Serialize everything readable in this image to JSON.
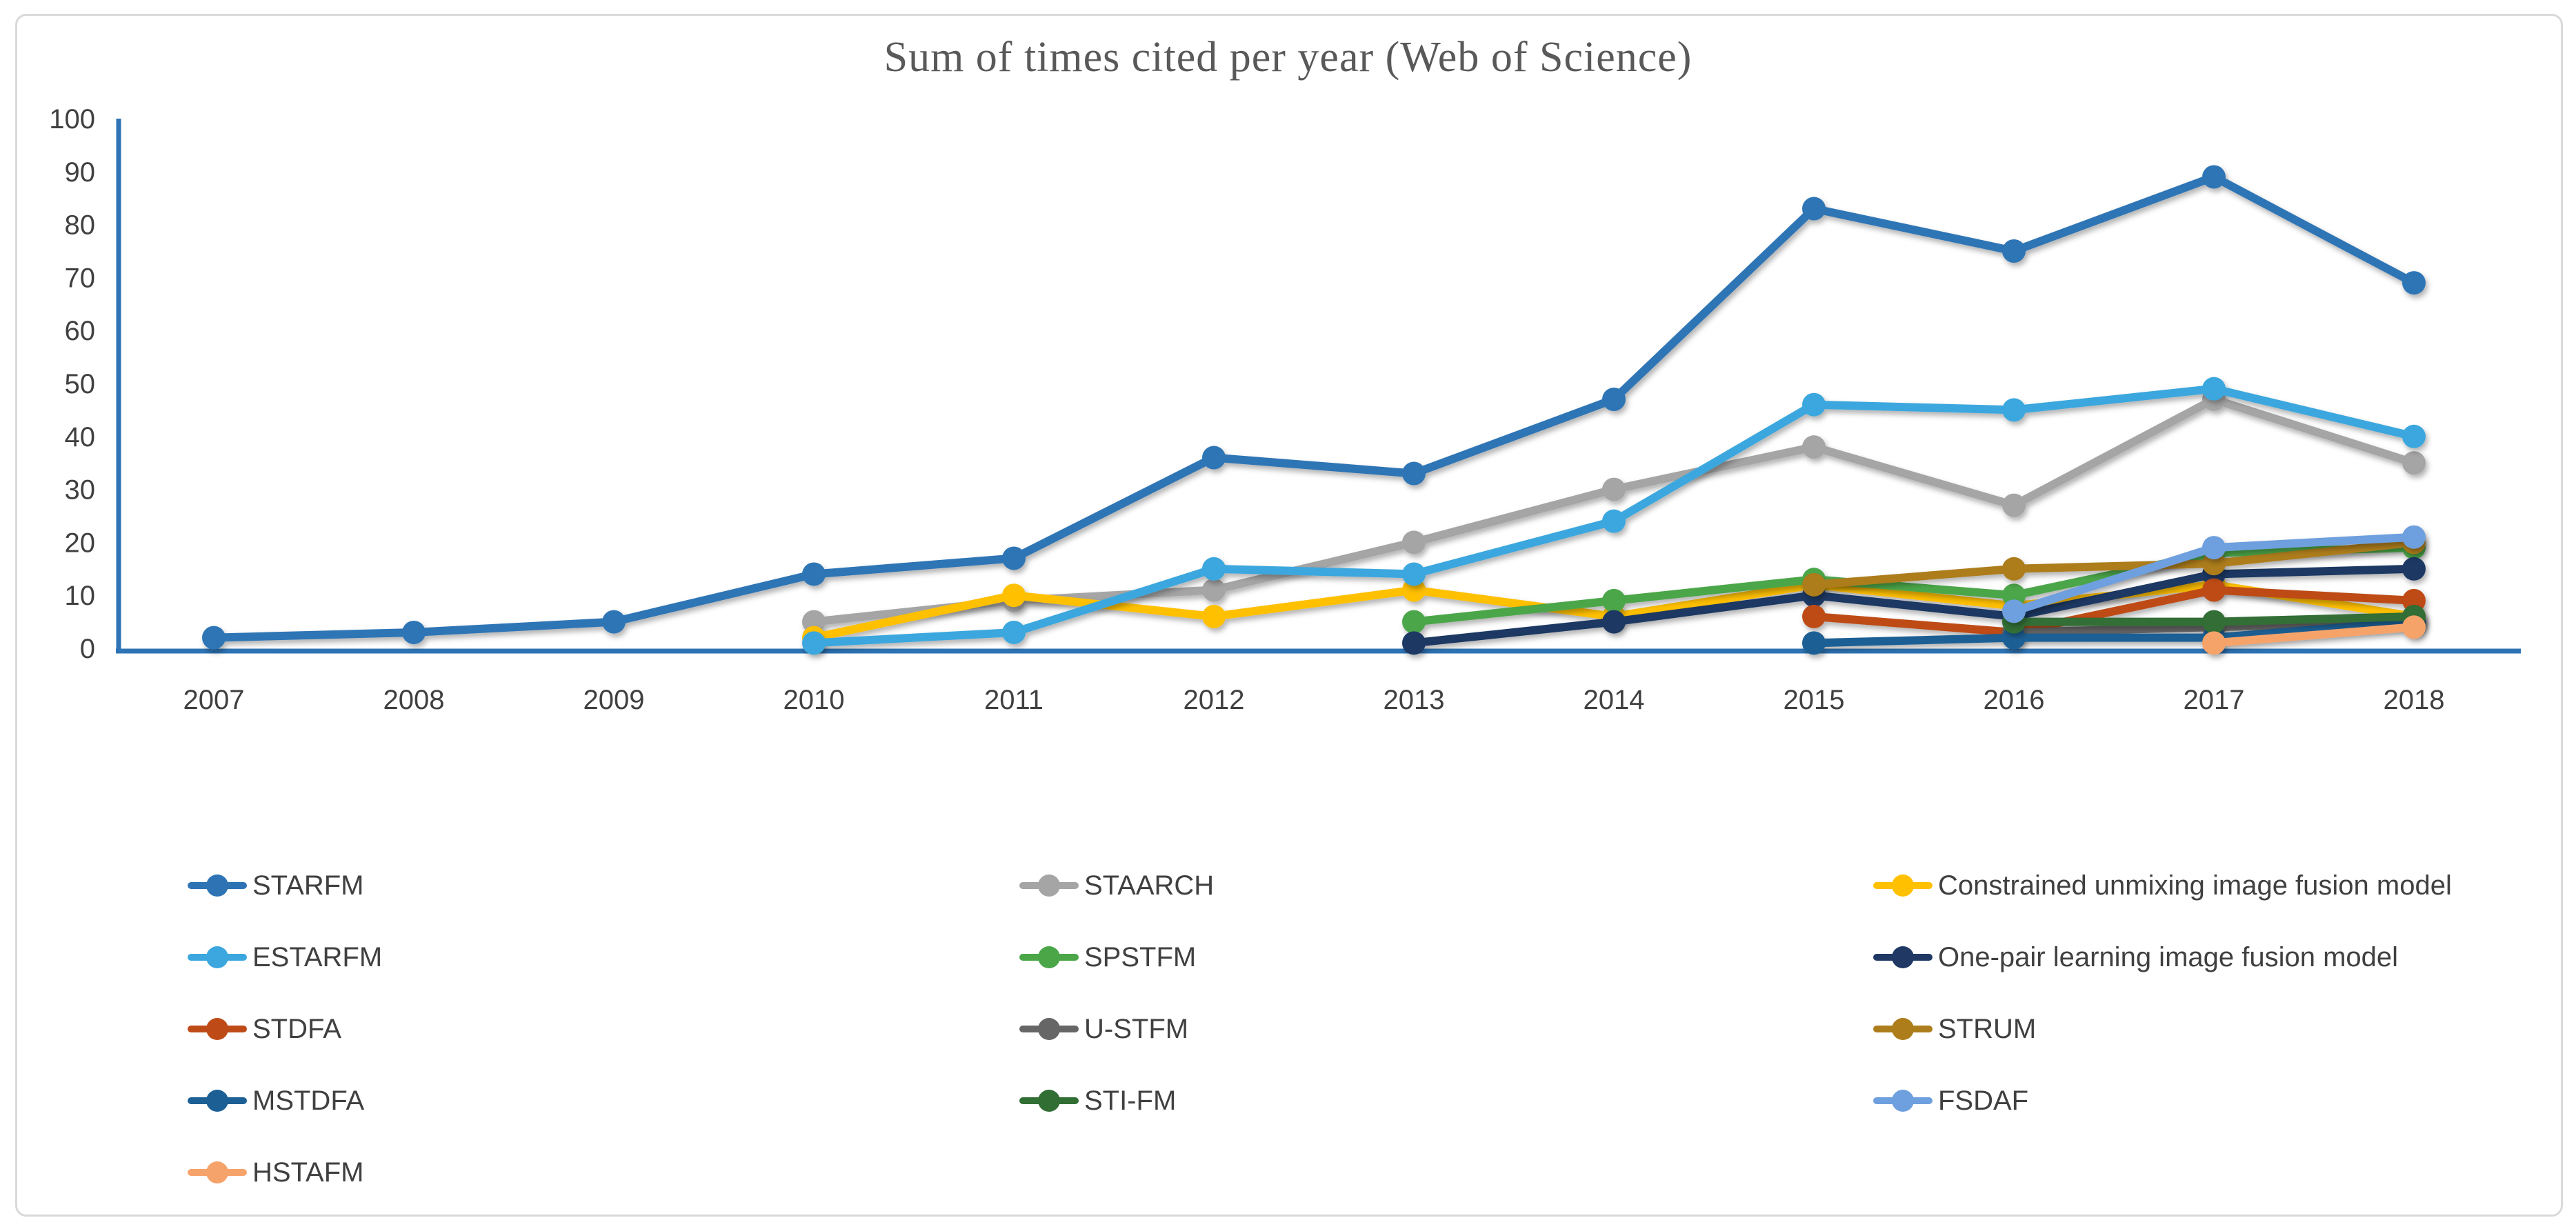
{
  "figure": {
    "background": "#FFFFFF",
    "border_color": "#D9D9D9"
  },
  "chart_data": {
    "type": "line",
    "title": "Sum of times cited per year (Web of Science)",
    "xlabel": "",
    "ylabel": "",
    "x": [
      2007,
      2008,
      2009,
      2010,
      2011,
      2012,
      2013,
      2014,
      2015,
      2016,
      2017,
      2018
    ],
    "y_ticks": [
      0,
      10,
      20,
      30,
      40,
      50,
      60,
      70,
      80,
      90,
      100
    ],
    "ylim": [
      0,
      100
    ],
    "grid": false,
    "legend_position": "bottom",
    "axis_color": "#2E74B5",
    "series": [
      {
        "name": "STARFM",
        "color": "#2E74B5",
        "values": [
          2,
          3,
          5,
          14,
          17,
          36,
          33,
          47,
          83,
          75,
          89,
          69
        ]
      },
      {
        "name": "STAARCH",
        "color": "#A5A5A5",
        "values": [
          null,
          null,
          null,
          5,
          9,
          11,
          20,
          30,
          38,
          27,
          47,
          35
        ]
      },
      {
        "name": "Constrained unmixing image fusion model",
        "color": "#FFC000",
        "values": [
          null,
          null,
          null,
          2,
          10,
          6,
          11,
          6,
          12,
          8,
          12,
          6
        ]
      },
      {
        "name": "ESTARFM",
        "color": "#3BA7DE",
        "values": [
          null,
          null,
          null,
          1,
          3,
          15,
          14,
          24,
          46,
          45,
          49,
          40
        ]
      },
      {
        "name": "SPSTFM",
        "color": "#4BA648",
        "values": [
          null,
          null,
          null,
          null,
          null,
          null,
          5,
          9,
          13,
          10,
          18,
          19
        ]
      },
      {
        "name": "One-pair learning image fusion model",
        "color": "#1F3864",
        "values": [
          null,
          null,
          null,
          null,
          null,
          null,
          1,
          5,
          10,
          6,
          14,
          15
        ]
      },
      {
        "name": "STDFA",
        "color": "#BE4B17",
        "values": [
          null,
          null,
          null,
          null,
          null,
          null,
          null,
          null,
          6,
          3,
          11,
          9
        ]
      },
      {
        "name": "U-STFM",
        "color": "#666666",
        "values": [
          null,
          null,
          null,
          null,
          null,
          null,
          null,
          null,
          null,
          3,
          4,
          5
        ]
      },
      {
        "name": "STRUM",
        "color": "#AD7D1C",
        "values": [
          null,
          null,
          null,
          null,
          null,
          null,
          null,
          null,
          12,
          15,
          16,
          20
        ]
      },
      {
        "name": "MSTDFA",
        "color": "#1C5F94",
        "values": [
          null,
          null,
          null,
          null,
          null,
          null,
          null,
          null,
          1,
          2,
          2,
          5
        ]
      },
      {
        "name": "STI-FM",
        "color": "#316E34",
        "values": [
          null,
          null,
          null,
          null,
          null,
          null,
          null,
          null,
          null,
          5,
          5,
          6
        ]
      },
      {
        "name": "FSDAF",
        "color": "#6E9FDE",
        "values": [
          null,
          null,
          null,
          null,
          null,
          null,
          null,
          null,
          null,
          7,
          19,
          21
        ]
      },
      {
        "name": "HSTAFM",
        "color": "#F6A36B",
        "values": [
          null,
          null,
          null,
          null,
          null,
          null,
          null,
          null,
          null,
          null,
          1,
          4
        ]
      }
    ]
  },
  "legend": {
    "columns": [
      [
        "STARFM",
        "ESTARFM",
        "STDFA",
        "MSTDFA",
        "HSTAFM"
      ],
      [
        "STAARCH",
        "SPSTFM",
        "U-STFM",
        "STI-FM"
      ],
      [
        "Constrained unmixing image fusion model",
        "One-pair learning image fusion model",
        "STRUM",
        "FSDAF"
      ]
    ]
  }
}
